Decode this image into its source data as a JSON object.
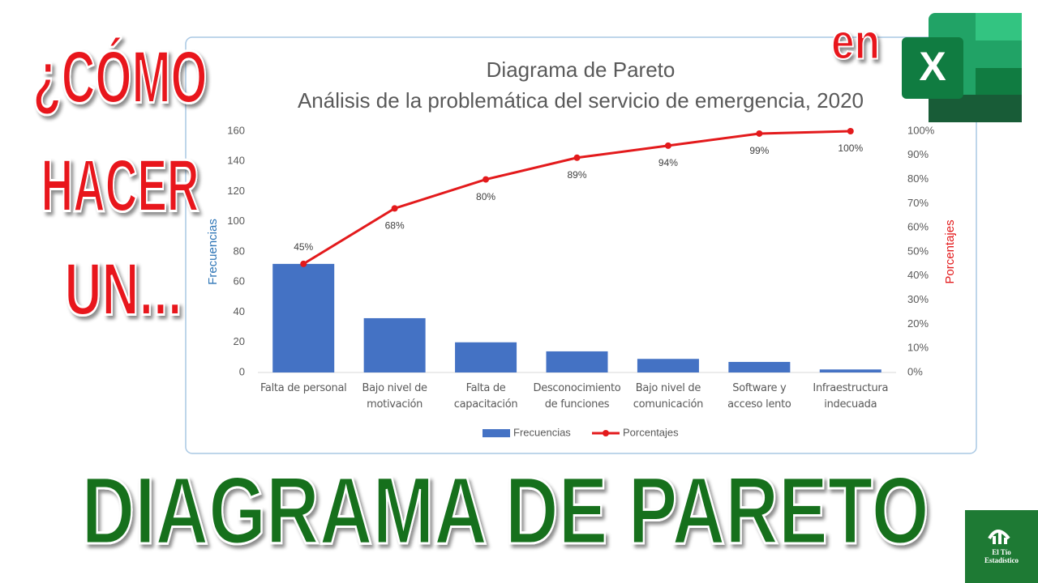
{
  "chart_data": {
    "type": "pareto",
    "title": "Diagrama de Pareto",
    "subtitle": "Análisis de la problemática del servicio de emergencia, 2020",
    "categories": [
      "Falta de personal",
      "Bajo nivel de motivación",
      "Falta de capacitación",
      "Desconocimiento de funciones",
      "Bajo nivel de comunicación",
      "Software y acceso lento",
      "Infraestructura indecuada"
    ],
    "series": [
      {
        "name": "Frecuencias",
        "color": "#4472c4",
        "type": "bar",
        "values": [
          72,
          36,
          20,
          14,
          9,
          7,
          2
        ]
      },
      {
        "name": "Porcentajes",
        "color": "#e31a1c",
        "type": "line",
        "axis": "y2",
        "values": [
          45,
          68,
          80,
          89,
          94,
          99,
          100
        ],
        "value_labels": [
          "45%",
          "68%",
          "80%",
          "89%",
          "94%",
          "99%",
          "100%"
        ]
      }
    ],
    "ylabel": "Frecuencias",
    "y2label": "Porcentajes",
    "ylim": [
      0,
      160
    ],
    "yticks": [
      0,
      20,
      40,
      60,
      80,
      100,
      120,
      140,
      160
    ],
    "y2lim": [
      0,
      100
    ],
    "y2ticks": [
      {
        "value": 0,
        "label": "0%"
      },
      {
        "value": 10,
        "label": "10%"
      },
      {
        "value": 20,
        "label": "20%"
      },
      {
        "value": 30,
        "label": "30%"
      },
      {
        "value": 40,
        "label": "40%"
      },
      {
        "value": 50,
        "label": "50%"
      },
      {
        "value": 60,
        "label": "60%"
      },
      {
        "value": 70,
        "label": "70%"
      },
      {
        "value": 80,
        "label": "80%"
      },
      {
        "value": 90,
        "label": "90%"
      },
      {
        "value": 100,
        "label": "100%"
      }
    ],
    "grid": false,
    "legend": "bottom"
  },
  "thumbnail": {
    "headline": [
      "¿CÓMO",
      "HACER",
      "UN..."
    ],
    "connector": "en",
    "excel_icon": "X",
    "banner": "DIAGRAMA DE PARETO",
    "logo": [
      "El Tío",
      "Estadístico"
    ]
  }
}
